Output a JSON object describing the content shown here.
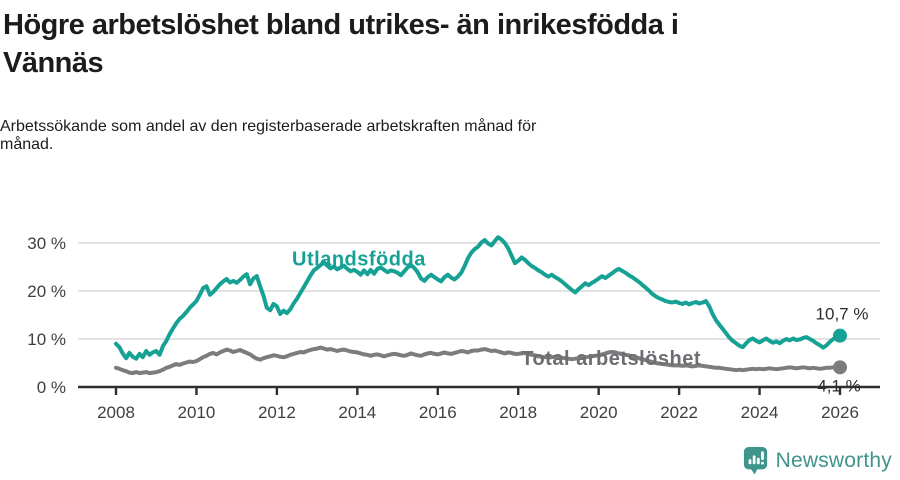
{
  "header": {
    "title_lines": [
      "Högre arbetslöshet bland utrikes- än inrikesfödda i",
      "Vännäs"
    ],
    "subtitle_lines": [
      "Arbetssökande som andel av den registerbaserade arbetskraften månad för",
      "månad."
    ]
  },
  "chart_data": {
    "type": "line",
    "unit": "%",
    "x_start_year": 2008,
    "points_per_year": 12,
    "x_end_year": 2026,
    "x_ticks": [
      2008,
      2010,
      2012,
      2014,
      2016,
      2018,
      2020,
      2022,
      2024,
      2026
    ],
    "y_ticks": [
      0,
      10,
      20,
      30
    ],
    "y_tick_labels": [
      "0 %",
      "10 %",
      "20 %",
      "30 %"
    ],
    "ylim": [
      0,
      33
    ],
    "grid": true,
    "colors": {
      "grid": "#d8d8d8",
      "axis": "#2f2f2f",
      "tick_text": "#3f3f3f",
      "end_label_text": "#2d2d2d"
    },
    "series": [
      {
        "name": "Total arbetslöshet",
        "color": "#7c7c7c",
        "label_color": "#6d6d72",
        "end_label": "4,1 %",
        "end_value": 4.1,
        "label_x": 2020.31,
        "label_y": 4.6,
        "values": [
          4.0,
          3.8,
          3.5,
          3.3,
          3.0,
          2.9,
          3.1,
          2.9,
          3.0,
          3.1,
          2.9,
          3.0,
          3.1,
          3.3,
          3.6,
          4.0,
          4.2,
          4.5,
          4.8,
          4.6,
          4.9,
          5.1,
          5.3,
          5.2,
          5.4,
          5.8,
          6.2,
          6.5,
          6.9,
          7.1,
          6.8,
          7.2,
          7.5,
          7.8,
          7.6,
          7.3,
          7.5,
          7.7,
          7.4,
          7.1,
          6.8,
          6.3,
          5.9,
          5.7,
          6.0,
          6.2,
          6.4,
          6.6,
          6.5,
          6.3,
          6.2,
          6.4,
          6.7,
          6.9,
          7.1,
          7.3,
          7.2,
          7.5,
          7.7,
          7.9,
          8.0,
          8.2,
          8.0,
          7.8,
          7.9,
          7.7,
          7.5,
          7.7,
          7.8,
          7.6,
          7.4,
          7.3,
          7.2,
          7.0,
          6.8,
          6.7,
          6.5,
          6.7,
          6.8,
          6.6,
          6.4,
          6.6,
          6.8,
          6.9,
          6.8,
          6.6,
          6.5,
          6.7,
          7.0,
          6.8,
          6.6,
          6.5,
          6.8,
          7.0,
          7.1,
          6.9,
          6.8,
          7.0,
          7.2,
          7.0,
          6.9,
          7.1,
          7.3,
          7.5,
          7.4,
          7.2,
          7.5,
          7.6,
          7.6,
          7.8,
          7.9,
          7.7,
          7.5,
          7.6,
          7.4,
          7.2,
          7.0,
          7.2,
          7.1,
          6.9,
          6.9,
          7.0,
          7.1,
          6.9,
          6.7,
          6.6,
          6.4,
          6.3,
          6.2,
          6.1,
          6.2,
          6.3,
          6.2,
          6.1,
          6.0,
          5.9,
          5.8,
          5.9,
          6.0,
          6.1,
          6.2,
          6.3,
          6.4,
          6.5,
          6.6,
          6.8,
          7.0,
          7.2,
          7.3,
          7.2,
          7.0,
          6.9,
          6.7,
          6.6,
          6.4,
          6.2,
          6.0,
          5.8,
          5.6,
          5.4,
          5.2,
          5.0,
          4.9,
          4.8,
          4.7,
          4.6,
          4.5,
          4.5,
          4.5,
          4.4,
          4.5,
          4.4,
          4.3,
          4.4,
          4.5,
          4.4,
          4.3,
          4.2,
          4.1,
          4.0,
          4.0,
          3.9,
          3.8,
          3.7,
          3.6,
          3.5,
          3.6,
          3.5,
          3.6,
          3.7,
          3.8,
          3.7,
          3.8,
          3.7,
          3.8,
          3.9,
          3.8,
          3.7,
          3.8,
          3.9,
          4.0,
          4.1,
          4.0,
          3.9,
          4.0,
          4.1,
          4.0,
          3.9,
          4.0,
          3.9,
          3.8,
          3.9,
          4.0,
          4.0,
          4.1,
          4.1,
          4.1
        ]
      },
      {
        "name": "Utlandsfödda",
        "color": "#16a195",
        "label_color": "#16a195",
        "end_label": "10,7 %",
        "end_value": 10.7,
        "label_x": 2014.04,
        "label_y": 25.3,
        "values": [
          9.0,
          8.3,
          7.0,
          6.0,
          7.1,
          6.3,
          5.9,
          6.9,
          6.2,
          7.5,
          6.7,
          7.2,
          7.5,
          6.7,
          8.5,
          9.6,
          11.0,
          12.2,
          13.3,
          14.2,
          14.8,
          15.6,
          16.5,
          17.2,
          17.9,
          19.2,
          20.6,
          21.0,
          19.2,
          19.8,
          20.6,
          21.4,
          22.0,
          22.5,
          21.8,
          22.1,
          21.7,
          22.3,
          23.0,
          23.5,
          21.4,
          22.6,
          23.1,
          21.0,
          19.0,
          16.5,
          16.0,
          17.3,
          16.8,
          15.2,
          15.9,
          15.4,
          16.2,
          17.4,
          18.4,
          19.6,
          20.8,
          22.0,
          23.2,
          24.3,
          24.8,
          25.4,
          26.0,
          25.3,
          24.7,
          25.1,
          24.5,
          24.9,
          25.3,
          24.6,
          24.1,
          24.4,
          24.0,
          23.4,
          24.3,
          23.5,
          24.4,
          23.6,
          24.6,
          24.9,
          24.4,
          23.9,
          24.3,
          24.1,
          23.8,
          23.3,
          24.1,
          24.9,
          25.4,
          24.8,
          23.9,
          22.6,
          22.1,
          22.9,
          23.4,
          22.9,
          22.4,
          22.0,
          22.9,
          23.4,
          22.8,
          22.4,
          23.0,
          23.8,
          25.2,
          26.8,
          28.0,
          28.7,
          29.2,
          30.1,
          30.6,
          29.9,
          29.5,
          30.4,
          31.2,
          30.7,
          30.0,
          28.9,
          27.4,
          25.8,
          26.3,
          27.0,
          26.5,
          25.8,
          25.2,
          24.8,
          24.3,
          23.9,
          23.4,
          23.0,
          23.4,
          22.9,
          22.5,
          22.0,
          21.4,
          20.8,
          20.2,
          19.7,
          20.4,
          21.0,
          21.6,
          21.2,
          21.7,
          22.1,
          22.6,
          23.1,
          22.7,
          23.2,
          23.7,
          24.2,
          24.6,
          24.2,
          23.8,
          23.3,
          22.9,
          22.4,
          21.9,
          21.3,
          20.7,
          20.1,
          19.4,
          18.9,
          18.5,
          18.2,
          17.9,
          17.7,
          17.6,
          17.8,
          17.5,
          17.3,
          17.6,
          17.2,
          17.5,
          17.7,
          17.4,
          17.6,
          17.9,
          16.8,
          15.2,
          13.9,
          13.0,
          12.1,
          11.2,
          10.3,
          9.6,
          9.1,
          8.6,
          8.3,
          9.1,
          9.8,
          10.1,
          9.6,
          9.3,
          9.7,
          10.1,
          9.6,
          9.2,
          9.5,
          9.1,
          9.6,
          10.0,
          9.7,
          10.1,
          9.8,
          9.9,
          10.2,
          10.4,
          10.0,
          9.6,
          9.1,
          8.7,
          8.2,
          8.7,
          9.4,
          10.0,
          10.4,
          10.7
        ]
      }
    ]
  },
  "footer": {
    "brand": "Newsworthy"
  }
}
